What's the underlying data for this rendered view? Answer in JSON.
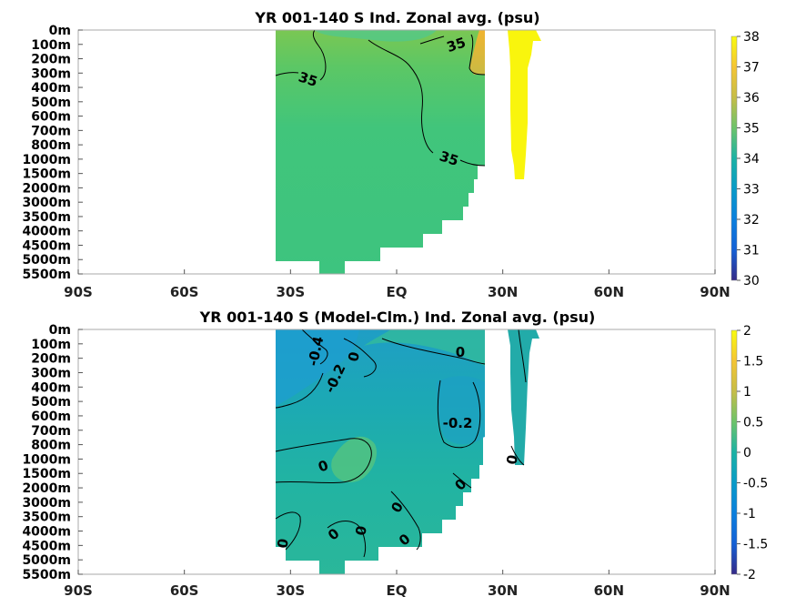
{
  "chart_data": [
    {
      "type": "heatmap",
      "title": "YR 001-140 S Ind. Zonal avg. (psu)",
      "y_ticks": [
        "0m",
        "100m",
        "200m",
        "300m",
        "400m",
        "500m",
        "600m",
        "700m",
        "800m",
        "1000m",
        "1500m",
        "2000m",
        "3000m",
        "3500m",
        "4000m",
        "4500m",
        "5000m",
        "5500m"
      ],
      "x_ticks": [
        "90S",
        "60S",
        "30S",
        "EQ",
        "30N",
        "60N",
        "90N"
      ],
      "xlim": [
        -90,
        90
      ],
      "colorbar": {
        "min": 30,
        "max": 38,
        "ticks": [
          "38",
          "37",
          "36",
          "35",
          "34",
          "33",
          "32",
          "31",
          "30"
        ]
      },
      "contour_labels": [
        "35",
        "35",
        "35"
      ],
      "colors": {
        "fill": "#3fc77e",
        "fill_light": "#5cc765",
        "fill_upper": "#7ac753",
        "high": "#e6b631",
        "tongue": "#fdf200"
      }
    },
    {
      "type": "heatmap",
      "title": "YR 001-140 S (Model-Clm.) Ind. Zonal avg. (psu)",
      "y_ticks": [
        "0m",
        "100m",
        "200m",
        "300m",
        "400m",
        "500m",
        "600m",
        "700m",
        "800m",
        "1000m",
        "1500m",
        "2000m",
        "3000m",
        "3500m",
        "4000m",
        "4500m",
        "5000m",
        "5500m"
      ],
      "x_ticks": [
        "90S",
        "60S",
        "30S",
        "EQ",
        "30N",
        "60N",
        "90N"
      ],
      "xlim": [
        -90,
        90
      ],
      "colorbar": {
        "min": -2,
        "max": 2,
        "ticks": [
          "2",
          "1.5",
          "1",
          "0.5",
          "0",
          "-0.5",
          "-1",
          "-1.5",
          "-2"
        ]
      },
      "contour_labels": [
        "-0.4",
        "0",
        "-0.2",
        "0",
        "-0.2",
        "0",
        "0",
        "0",
        "0",
        "0",
        "0",
        "0",
        "0"
      ],
      "colors": {
        "fill": "#1fb3a2",
        "fill_low": "#1f9ec5",
        "fill_mid": "#21a8b6",
        "fill_high": "#4ac48a"
      }
    }
  ]
}
